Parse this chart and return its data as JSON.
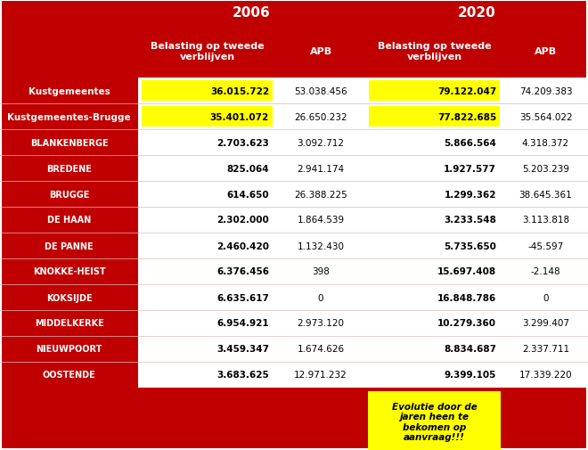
{
  "title_2006": "2006",
  "title_2020": "2020",
  "col_headers": [
    "Belasting op tweede\nverblijven",
    "APB",
    "Belasting op tweede\nverblijven",
    "APB"
  ],
  "rows": [
    {
      "name": "Kustgemeentes",
      "vals": [
        "36.015.722",
        "53.038.456",
        "79.122.047",
        "74.209.383"
      ],
      "highlight": [
        true,
        false,
        true,
        false
      ]
    },
    {
      "name": "Kustgemeentes-Brugge",
      "vals": [
        "35.401.072",
        "26.650.232",
        "77.822.685",
        "35.564.022"
      ],
      "highlight": [
        true,
        false,
        true,
        false
      ]
    },
    {
      "name": "BLANKENBERGE",
      "vals": [
        "2.703.623",
        "3.092.712",
        "5.866.564",
        "4.318.372"
      ],
      "highlight": [
        false,
        false,
        false,
        false
      ]
    },
    {
      "name": "BREDENE",
      "vals": [
        "825.064",
        "2.941.174",
        "1.927.577",
        "5.203.239"
      ],
      "highlight": [
        false,
        false,
        false,
        false
      ]
    },
    {
      "name": "BRUGGE",
      "vals": [
        "614.650",
        "26.388.225",
        "1.299.362",
        "38.645.361"
      ],
      "highlight": [
        false,
        false,
        false,
        false
      ]
    },
    {
      "name": "DE HAAN",
      "vals": [
        "2.302.000",
        "1.864.539",
        "3.233.548",
        "3.113.818"
      ],
      "highlight": [
        false,
        false,
        false,
        false
      ]
    },
    {
      "name": "DE PANNE",
      "vals": [
        "2.460.420",
        "1.132.430",
        "5.735.650",
        "-45.597"
      ],
      "highlight": [
        false,
        false,
        false,
        false
      ]
    },
    {
      "name": "KNOKKE-HEIST",
      "vals": [
        "6.376.456",
        "398",
        "15.697.408",
        "-2.148"
      ],
      "highlight": [
        false,
        false,
        false,
        false
      ]
    },
    {
      "name": "KOKSIJDE",
      "vals": [
        "6.635.617",
        "0",
        "16.848.786",
        "0"
      ],
      "highlight": [
        false,
        false,
        false,
        false
      ]
    },
    {
      "name": "MIDDELKERKE",
      "vals": [
        "6.954.921",
        "2.973.120",
        "10.279.360",
        "3.299.407"
      ],
      "highlight": [
        false,
        false,
        false,
        false
      ]
    },
    {
      "name": "NIEUWPOORT",
      "vals": [
        "3.459.347",
        "1.674.626",
        "8.834.687",
        "2.337.711"
      ],
      "highlight": [
        false,
        false,
        false,
        false
      ]
    },
    {
      "name": "OOSTENDE",
      "vals": [
        "3.683.625",
        "12.971.232",
        "9.399.105",
        "17.339.220"
      ],
      "highlight": [
        false,
        false,
        false,
        false
      ]
    }
  ],
  "footer_text": "Evolutie door de\njaren heen te\nbekomen op\naanvraag!!!",
  "bg_color": "#c00000",
  "white_color": "#ffffff",
  "yellow_color": "#ffff00",
  "black_color": "#000000",
  "separator_color": "#ddbbbb"
}
